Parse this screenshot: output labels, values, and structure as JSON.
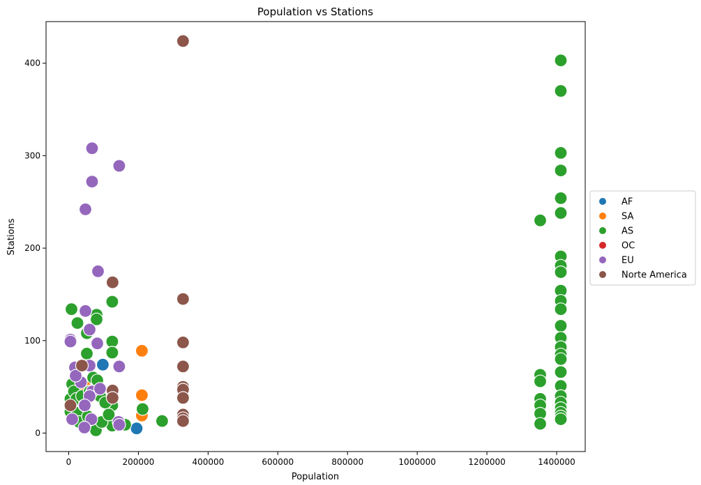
{
  "chart_data": {
    "type": "scatter",
    "title": "Population vs Stations",
    "xlabel": "Population",
    "ylabel": "Stations",
    "xlim": [
      -65000,
      1482000
    ],
    "ylim": [
      -20,
      445
    ],
    "xticks": [
      0,
      200000,
      400000,
      600000,
      800000,
      1000000,
      1200000,
      1400000
    ],
    "xtick_labels": [
      "0",
      "200000",
      "400000",
      "600000",
      "800000",
      "1000000",
      "1200000",
      "1400000"
    ],
    "yticks": [
      0,
      100,
      200,
      300,
      400
    ],
    "ytick_labels": [
      "0",
      "100",
      "200",
      "300",
      "400"
    ],
    "grid": false,
    "legend_position": "right",
    "series": [
      {
        "name": "AF",
        "color": "#1f77b4",
        "points": [
          [
            98000,
            74
          ],
          [
            195000,
            5
          ]
        ]
      },
      {
        "name": "SA",
        "color": "#ff7f0e",
        "points": [
          [
            210000,
            89
          ],
          [
            210000,
            41
          ],
          [
            210000,
            19
          ],
          [
            32000,
            49
          ],
          [
            45000,
            52
          ]
        ]
      },
      {
        "name": "AS",
        "color": "#2ca02c",
        "points": [
          [
            8000,
            134
          ],
          [
            25000,
            119
          ],
          [
            52000,
            108
          ],
          [
            52000,
            86
          ],
          [
            80000,
            128
          ],
          [
            80000,
            123
          ],
          [
            125000,
            142
          ],
          [
            125000,
            99
          ],
          [
            125000,
            87
          ],
          [
            125000,
            30
          ],
          [
            125000,
            8
          ],
          [
            5000,
            37
          ],
          [
            5000,
            23
          ],
          [
            10000,
            53
          ],
          [
            15000,
            45
          ],
          [
            22000,
            37
          ],
          [
            25000,
            22
          ],
          [
            30000,
            12
          ],
          [
            38000,
            40
          ],
          [
            45000,
            30
          ],
          [
            55000,
            18
          ],
          [
            60000,
            45
          ],
          [
            70000,
            60
          ],
          [
            78000,
            3
          ],
          [
            82000,
            57
          ],
          [
            90000,
            40
          ],
          [
            95000,
            12
          ],
          [
            105000,
            33
          ],
          [
            115000,
            20
          ],
          [
            145000,
            10
          ],
          [
            162000,
            9
          ],
          [
            212000,
            26
          ],
          [
            268000,
            13
          ],
          [
            1353000,
            230
          ],
          [
            1353000,
            63
          ],
          [
            1353000,
            56
          ],
          [
            1353000,
            37
          ],
          [
            1353000,
            30
          ],
          [
            1353000,
            21
          ],
          [
            1353000,
            10
          ],
          [
            1412000,
            403
          ],
          [
            1412000,
            370
          ],
          [
            1412000,
            303
          ],
          [
            1412000,
            284
          ],
          [
            1412000,
            254
          ],
          [
            1412000,
            238
          ],
          [
            1412000,
            191
          ],
          [
            1412000,
            181
          ],
          [
            1412000,
            174
          ],
          [
            1412000,
            154
          ],
          [
            1412000,
            143
          ],
          [
            1412000,
            134
          ],
          [
            1412000,
            116
          ],
          [
            1412000,
            103
          ],
          [
            1412000,
            93
          ],
          [
            1412000,
            85
          ],
          [
            1412000,
            80
          ],
          [
            1412000,
            66
          ],
          [
            1412000,
            51
          ],
          [
            1412000,
            40
          ],
          [
            1412000,
            33
          ],
          [
            1412000,
            27
          ],
          [
            1412000,
            22
          ],
          [
            1412000,
            18
          ],
          [
            1412000,
            15
          ]
        ]
      },
      {
        "name": "OC",
        "color": "#d62728",
        "points": []
      },
      {
        "name": "EU",
        "color": "#9467bd",
        "points": [
          [
            67000,
            308
          ],
          [
            67000,
            272
          ],
          [
            145000,
            289
          ],
          [
            48000,
            242
          ],
          [
            84000,
            175
          ],
          [
            48000,
            132
          ],
          [
            60000,
            112
          ],
          [
            82000,
            97
          ],
          [
            5000,
            101
          ],
          [
            5000,
            99
          ],
          [
            18000,
            71
          ],
          [
            60000,
            73
          ],
          [
            145000,
            72
          ],
          [
            67000,
            45
          ],
          [
            90000,
            48
          ],
          [
            60000,
            40
          ],
          [
            46000,
            30
          ],
          [
            10000,
            15
          ],
          [
            65000,
            15
          ],
          [
            143000,
            12
          ],
          [
            145000,
            9
          ],
          [
            45000,
            6
          ],
          [
            35000,
            55
          ],
          [
            20000,
            62
          ]
        ]
      },
      {
        "name": "Norte America",
        "color": "#8c564b",
        "points": [
          [
            328000,
            424
          ],
          [
            328000,
            145
          ],
          [
            328000,
            98
          ],
          [
            328000,
            72
          ],
          [
            328000,
            50
          ],
          [
            328000,
            47
          ],
          [
            328000,
            38
          ],
          [
            328000,
            20
          ],
          [
            328000,
            16
          ],
          [
            328000,
            13
          ],
          [
            126000,
            163
          ],
          [
            126000,
            46
          ],
          [
            126000,
            38
          ],
          [
            38000,
            73
          ],
          [
            5000,
            30
          ]
        ]
      }
    ]
  }
}
